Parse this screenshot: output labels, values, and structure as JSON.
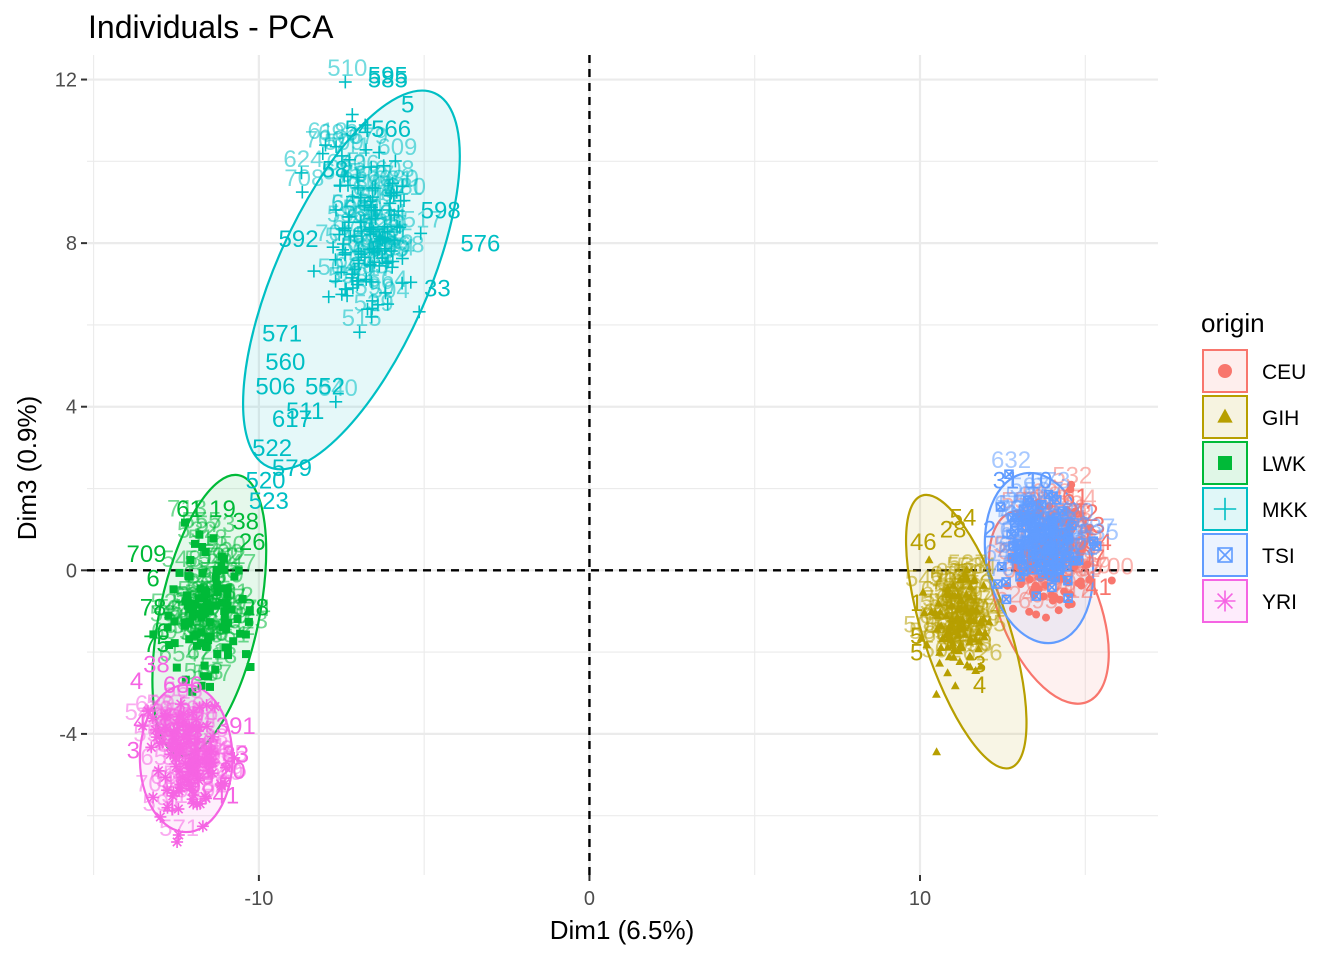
{
  "chart_data": {
    "type": "scatter",
    "title": "Individuals - PCA",
    "xlabel": "Dim1 (6.5%)",
    "ylabel": "Dim3 (0.9%)",
    "xlim": [
      -15.2,
      17.2
    ],
    "ylim": [
      -7.45,
      12.6
    ],
    "x_ticks": [
      -10,
      0,
      10
    ],
    "y_ticks": [
      -4,
      0,
      4,
      8,
      12
    ],
    "grid": true,
    "reference_lines": {
      "x": 0,
      "y": 0,
      "style": "dashed"
    },
    "legend": {
      "title": "origin",
      "position": "right"
    },
    "groups": [
      {
        "name": "CEU",
        "color": "#F8766D",
        "symbol": "circle",
        "center": [
          14.0,
          0.3
        ],
        "spread": [
          0.65,
          0.75
        ],
        "count": 110,
        "ellipse": {
          "center": [
            13.9,
            -0.9
          ],
          "rx": 1.5,
          "ry": 2.5,
          "angle": -22
        },
        "labels": [
          {
            "text": "61",
            "x": 14.7,
            "y": 1.6
          },
          {
            "text": "42",
            "x": 15.0,
            "y": 1.2
          },
          {
            "text": "54",
            "x": 15.4,
            "y": 0.5
          },
          {
            "text": "07",
            "x": 15.2,
            "y": 0.1
          },
          {
            "text": "41",
            "x": 15.4,
            "y": -0.6
          },
          {
            "text": "13",
            "x": 15.2,
            "y": 0.9
          }
        ]
      },
      {
        "name": "GIH",
        "color": "#B79F00",
        "symbol": "triangle",
        "center": [
          11.2,
          -1.3
        ],
        "spread": [
          0.45,
          0.75
        ],
        "count": 110,
        "ellipse": {
          "center": [
            11.4,
            -1.5
          ],
          "rx": 1.3,
          "ry": 3.5,
          "angle": -18
        },
        "labels": [
          {
            "text": "46",
            "x": 10.1,
            "y": 0.5
          },
          {
            "text": "54",
            "x": 11.3,
            "y": 1.1
          },
          {
            "text": "28",
            "x": 11.0,
            "y": 0.8
          },
          {
            "text": "1",
            "x": 9.9,
            "y": -1.0
          },
          {
            "text": "5",
            "x": 9.9,
            "y": -1.8
          },
          {
            "text": "5",
            "x": 9.9,
            "y": -2.2
          },
          {
            "text": "3",
            "x": 11.8,
            "y": -2.5
          },
          {
            "text": "4",
            "x": 11.8,
            "y": -3.0
          }
        ]
      },
      {
        "name": "LWK",
        "color": "#00BA38",
        "symbol": "square",
        "center": [
          -11.6,
          -1.0
        ],
        "spread": [
          0.55,
          0.85
        ],
        "count": 110,
        "ellipse": {
          "center": [
            -11.5,
            -1.1
          ],
          "rx": 1.5,
          "ry": 3.5,
          "angle": 12
        },
        "labels": [
          {
            "text": "61",
            "x": -12.1,
            "y": 1.3
          },
          {
            "text": "19",
            "x": -11.1,
            "y": 1.3
          },
          {
            "text": "38",
            "x": -10.4,
            "y": 1.0
          },
          {
            "text": "26",
            "x": -10.2,
            "y": 0.5
          },
          {
            "text": "709",
            "x": -13.4,
            "y": 0.2
          },
          {
            "text": "6",
            "x": -13.2,
            "y": -0.4
          },
          {
            "text": "78",
            "x": -13.2,
            "y": -1.1
          },
          {
            "text": "28",
            "x": -10.1,
            "y": -1.1
          },
          {
            "text": "6",
            "x": -12.9,
            "y": -1.7
          },
          {
            "text": "75",
            "x": -13.1,
            "y": -2.0
          }
        ]
      },
      {
        "name": "MKK",
        "color": "#00BFC4",
        "symbol": "plus",
        "center": [
          -6.7,
          8.1
        ],
        "spread": [
          0.7,
          1.1
        ],
        "count": 130,
        "ellipse": {
          "center": [
            -7.2,
            7.1
          ],
          "rx": 2.3,
          "ry": 5.0,
          "angle": 24
        },
        "labels": [
          {
            "text": "595",
            "x": -6.1,
            "y": 11.9
          },
          {
            "text": "585",
            "x": -6.1,
            "y": 11.8
          },
          {
            "text": "545",
            "x": -6.8,
            "y": 10.6
          },
          {
            "text": "566",
            "x": -6.0,
            "y": 10.6
          },
          {
            "text": "5",
            "x": -5.5,
            "y": 11.2
          },
          {
            "text": "58",
            "x": -7.7,
            "y": 9.6
          },
          {
            "text": "598",
            "x": -4.5,
            "y": 8.6
          },
          {
            "text": "576",
            "x": -3.3,
            "y": 7.8
          },
          {
            "text": "592",
            "x": -8.8,
            "y": 7.9
          },
          {
            "text": "33",
            "x": -4.6,
            "y": 6.7
          },
          {
            "text": "571",
            "x": -9.3,
            "y": 5.6
          },
          {
            "text": "560",
            "x": -9.2,
            "y": 4.9
          },
          {
            "text": "506",
            "x": -9.5,
            "y": 4.3
          },
          {
            "text": "552",
            "x": -8.0,
            "y": 4.3
          },
          {
            "text": "511",
            "x": -8.6,
            "y": 3.7
          },
          {
            "text": "617",
            "x": -9.0,
            "y": 3.5
          },
          {
            "text": "522",
            "x": -9.6,
            "y": 2.8
          },
          {
            "text": "579",
            "x": -9.0,
            "y": 2.3
          },
          {
            "text": "520",
            "x": -9.8,
            "y": 2.0
          },
          {
            "text": "523",
            "x": -9.7,
            "y": 1.5
          }
        ]
      },
      {
        "name": "TSI",
        "color": "#619CFF",
        "symbol": "boxcross",
        "center": [
          13.6,
          0.7
        ],
        "spread": [
          0.6,
          0.55
        ],
        "count": 110,
        "ellipse": {
          "center": [
            13.6,
            0.3
          ],
          "rx": 1.6,
          "ry": 2.1,
          "angle": -10
        },
        "labels": [
          {
            "text": "31",
            "x": 12.6,
            "y": 2.0
          },
          {
            "text": "10",
            "x": 13.6,
            "y": 2.0
          },
          {
            "text": "2",
            "x": 12.1,
            "y": 0.8
          }
        ]
      },
      {
        "name": "YRI",
        "color": "#F564E3",
        "symbol": "star",
        "center": [
          -12.2,
          -4.6
        ],
        "spread": [
          0.55,
          0.7
        ],
        "count": 120,
        "ellipse": {
          "center": [
            -12.2,
            -4.6
          ],
          "rx": 1.4,
          "ry": 1.8,
          "angle": 0
        },
        "labels": [
          {
            "text": "38",
            "x": -13.1,
            "y": -2.5
          },
          {
            "text": "4",
            "x": -13.7,
            "y": -2.9
          },
          {
            "text": "686",
            "x": -12.3,
            "y": -3.0
          },
          {
            "text": "4",
            "x": -13.6,
            "y": -3.9
          },
          {
            "text": "391",
            "x": -10.7,
            "y": -4.0
          },
          {
            "text": "3",
            "x": -13.8,
            "y": -4.6
          },
          {
            "text": "33",
            "x": -10.7,
            "y": -4.7
          },
          {
            "text": "20",
            "x": -10.8,
            "y": -5.1
          },
          {
            "text": "41",
            "x": -11.0,
            "y": -5.7
          },
          {
            "text": "4",
            "x": -12.7,
            "y": -6.0
          }
        ]
      }
    ]
  }
}
